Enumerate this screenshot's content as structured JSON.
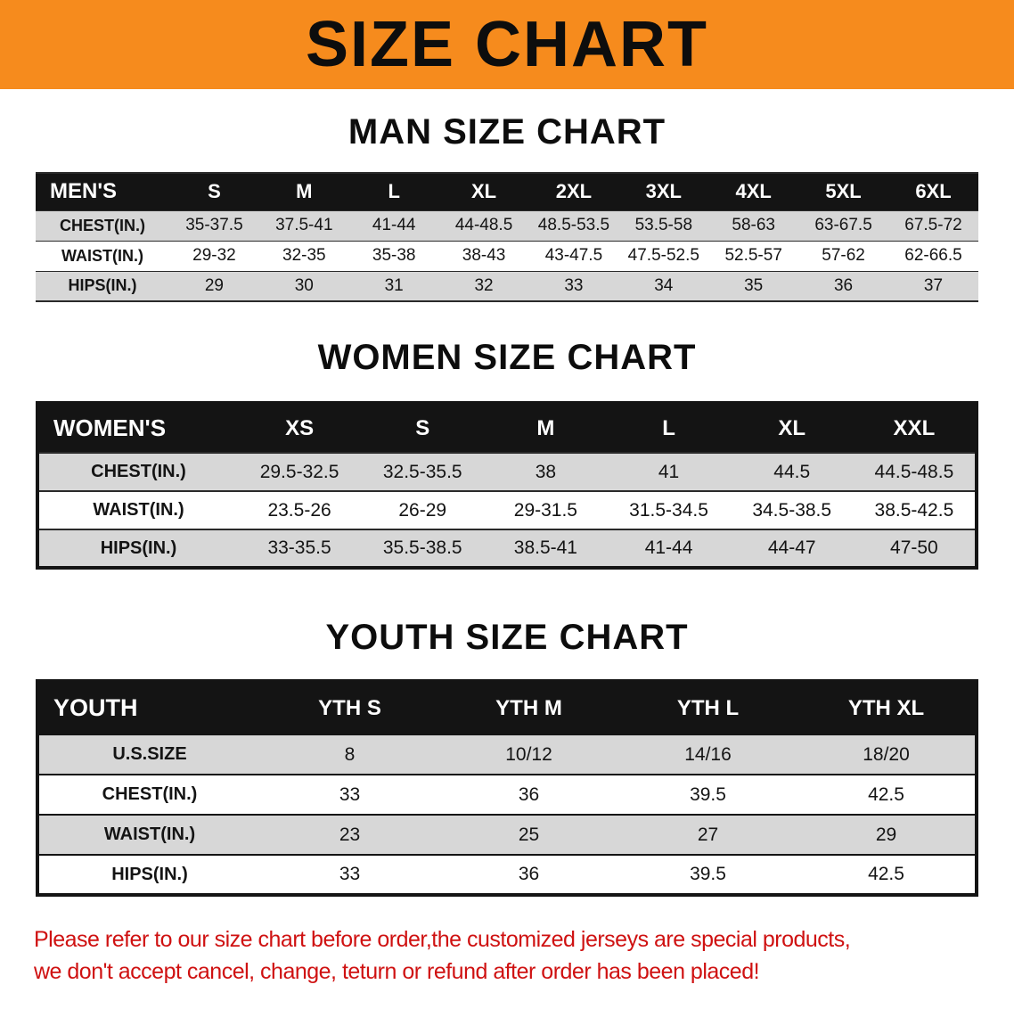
{
  "banner": {
    "title": "SIZE CHART"
  },
  "colors": {
    "banner_orange": "#f68b1d",
    "header_black": "#141414",
    "row_gray": "#d7d7d7",
    "disclaimer_red": "#cf1111"
  },
  "sections": [
    {
      "heading": "MAN SIZE CHART",
      "table": {
        "header": [
          "MEN'S",
          "S",
          "M",
          "L",
          "XL",
          "2XL",
          "3XL",
          "4XL",
          "5XL",
          "6XL"
        ],
        "rows": [
          [
            "CHEST(IN.)",
            "35-37.5",
            "37.5-41",
            "41-44",
            "44-48.5",
            "48.5-53.5",
            "53.5-58",
            "58-63",
            "63-67.5",
            "67.5-72"
          ],
          [
            "WAIST(IN.)",
            "29-32",
            "32-35",
            "35-38",
            "38-43",
            "43-47.5",
            "47.5-52.5",
            "52.5-57",
            "57-62",
            "62-66.5"
          ],
          [
            "HIPS(IN.)",
            "29",
            "30",
            "31",
            "32",
            "33",
            "34",
            "35",
            "36",
            "37"
          ]
        ]
      }
    },
    {
      "heading": "WOMEN SIZE CHART",
      "table": {
        "header": [
          "WOMEN'S",
          "XS",
          "S",
          "M",
          "L",
          "XL",
          "XXL"
        ],
        "rows": [
          [
            "CHEST(IN.)",
            "29.5-32.5",
            "32.5-35.5",
            "38",
            "41",
            "44.5",
            "44.5-48.5"
          ],
          [
            "WAIST(IN.)",
            "23.5-26",
            "26-29",
            "29-31.5",
            "31.5-34.5",
            "34.5-38.5",
            "38.5-42.5"
          ],
          [
            "HIPS(IN.)",
            "33-35.5",
            "35.5-38.5",
            "38.5-41",
            "41-44",
            "44-47",
            "47-50"
          ]
        ]
      }
    },
    {
      "heading": "YOUTH SIZE CHART",
      "table": {
        "header": [
          "YOUTH",
          "YTH S",
          "YTH M",
          "YTH L",
          "YTH XL"
        ],
        "rows": [
          [
            "U.S.SIZE",
            "8",
            "10/12",
            "14/16",
            "18/20"
          ],
          [
            "CHEST(IN.)",
            "33",
            "36",
            "39.5",
            "42.5"
          ],
          [
            "WAIST(IN.)",
            "23",
            "25",
            "27",
            "29"
          ],
          [
            "HIPS(IN.)",
            "33",
            "36",
            "39.5",
            "42.5"
          ]
        ]
      }
    }
  ],
  "disclaimer": {
    "line1": "Please refer to our size chart before order,the customized jerseys are special products,",
    "line2": "we don't accept cancel, change, teturn or refund after order has been placed!"
  }
}
